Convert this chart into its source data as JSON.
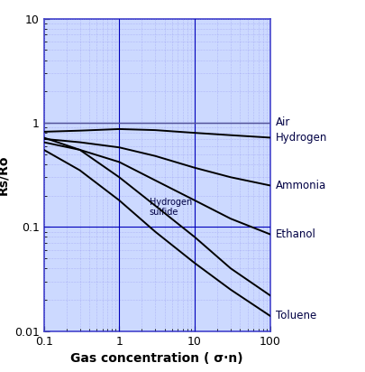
{
  "xlabel": "Gas concentration ( σ·n)",
  "ylabel": "Rs/Ro",
  "xlim": [
    0.1,
    100
  ],
  "ylim": [
    0.01,
    10
  ],
  "bg_color": "#ffffff",
  "plot_bg_color": "#ccd9ff",
  "grid_major_color": "#4444cc",
  "grid_minor_color": "#8888ee",
  "line_color": "#000000",
  "air_line_color": "#555599",
  "vline_color": "#0000bb",
  "hline_color": "#0000bb",
  "font_color": "#000044",
  "label_color": "#000000",
  "curves": {
    "Air": {
      "x": [
        0.1,
        100
      ],
      "y": [
        1.0,
        1.0
      ]
    },
    "Hydrogen": {
      "x": [
        0.1,
        0.3,
        1.0,
        3,
        10,
        30,
        100
      ],
      "y": [
        0.82,
        0.84,
        0.87,
        0.85,
        0.8,
        0.76,
        0.72
      ]
    },
    "Ammonia": {
      "x": [
        0.1,
        0.3,
        1.0,
        3,
        10,
        30,
        100
      ],
      "y": [
        0.7,
        0.65,
        0.58,
        0.48,
        0.37,
        0.3,
        0.25
      ]
    },
    "Ethanol": {
      "x": [
        0.1,
        0.3,
        1.0,
        3,
        10,
        30,
        100
      ],
      "y": [
        0.65,
        0.55,
        0.42,
        0.28,
        0.18,
        0.12,
        0.085
      ]
    },
    "Hydrogen sulfide": {
      "x": [
        0.1,
        0.3,
        1.0,
        3,
        10,
        30,
        100
      ],
      "y": [
        0.72,
        0.55,
        0.3,
        0.16,
        0.08,
        0.04,
        0.022
      ]
    },
    "Toluene": {
      "x": [
        0.1,
        0.3,
        1.0,
        3,
        10,
        30,
        100
      ],
      "y": [
        0.55,
        0.35,
        0.18,
        0.09,
        0.045,
        0.025,
        0.014
      ]
    }
  },
  "vlines": [
    1.0,
    10.0
  ],
  "hlines": [
    1.0,
    0.1
  ],
  "annotation_fontsize": 8.5,
  "label_fontsize": 10,
  "tick_fontsize": 9
}
